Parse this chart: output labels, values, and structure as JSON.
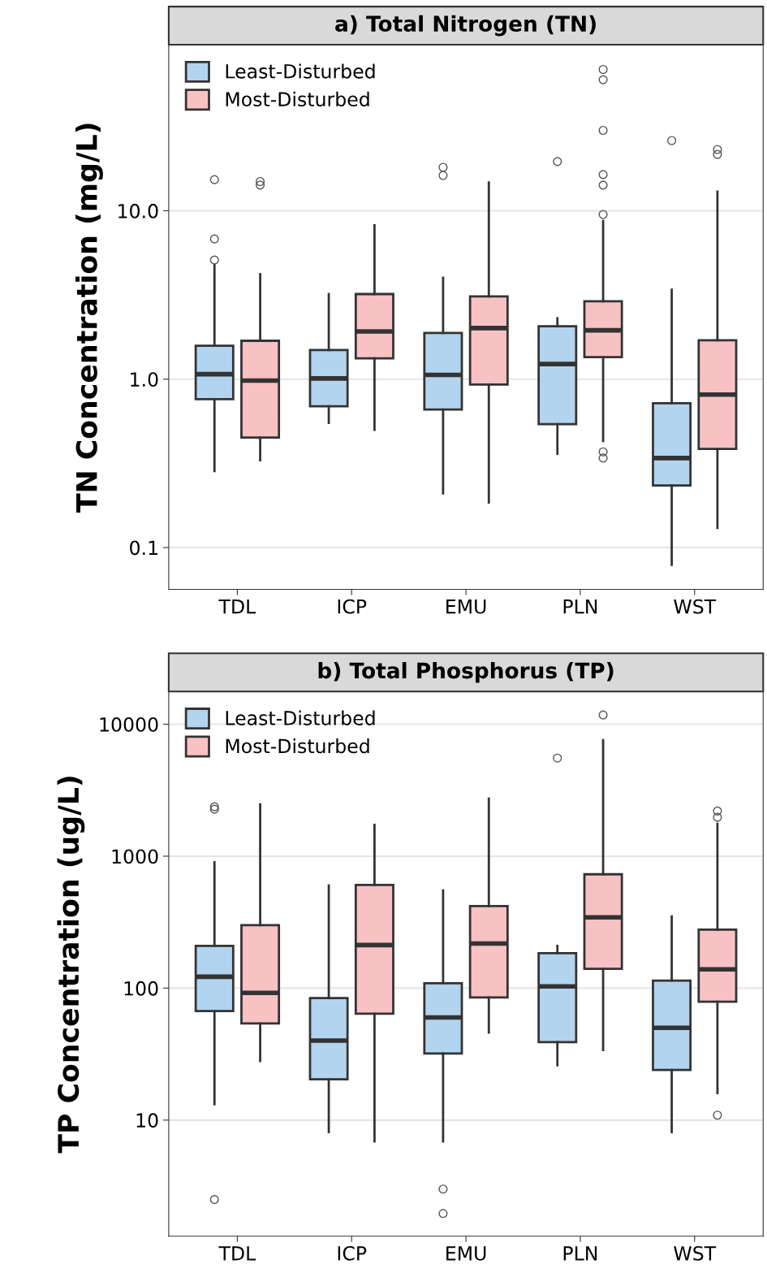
{
  "chart_data": [
    {
      "type": "box",
      "title": "a) Total Nitrogen (TN)",
      "ylabel": "TN Concentration (mg/L)",
      "categories": [
        "TDL",
        "ICP",
        "EMU",
        "PLN",
        "WST"
      ],
      "log": true,
      "ylim": [
        0.0565,
        96.8
      ],
      "yticks": [
        {
          "value": 0.1,
          "label": "0.1"
        },
        {
          "value": 1,
          "label": "1.0"
        },
        {
          "value": 10,
          "label": "10.0"
        }
      ],
      "grid": "y",
      "legend": "top left",
      "series": [
        {
          "name": "Least-Disturbed",
          "color": "#b3d4ee",
          "boxes": [
            {
              "low": 0.285,
              "q1": 0.76,
              "median": 1.07,
              "q3": 1.58,
              "high": 4.8,
              "outliers": [
                15.3,
                6.8,
                5.1
              ]
            },
            {
              "low": 0.55,
              "q1": 0.69,
              "median": 1.01,
              "q3": 1.49,
              "high": 3.2
            },
            {
              "low": 0.21,
              "q1": 0.66,
              "median": 1.06,
              "q3": 1.88,
              "high": 4.0,
              "outliers": [
                18.1,
                16.2
              ]
            },
            {
              "low": 0.36,
              "q1": 0.54,
              "median": 1.23,
              "q3": 2.06,
              "high": 2.3,
              "outliers": [
                19.6
              ]
            },
            {
              "low": 0.079,
              "q1": 0.234,
              "median": 0.34,
              "q3": 0.72,
              "high": 3.4,
              "outliers": [
                26.1
              ]
            }
          ]
        },
        {
          "name": "Most-Disturbed",
          "color": "#f8c1c3",
          "boxes": [
            {
              "low": 0.33,
              "q1": 0.45,
              "median": 0.98,
              "q3": 1.69,
              "high": 4.2,
              "outliers": [
                14.9,
                14.2
              ]
            },
            {
              "low": 0.5,
              "q1": 1.33,
              "median": 1.92,
              "q3": 3.2,
              "high": 8.2
            },
            {
              "low": 0.185,
              "q1": 0.93,
              "median": 2.01,
              "q3": 3.1,
              "high": 14.7
            },
            {
              "low": 0.43,
              "q1": 1.35,
              "median": 1.95,
              "q3": 2.9,
              "high": 8.7,
              "outliers": [
                69,
                60,
                30,
                16.4,
                14.2,
                9.5,
                0.37,
                0.34
              ]
            },
            {
              "low": 0.131,
              "q1": 0.385,
              "median": 0.81,
              "q3": 1.7,
              "high": 13,
              "outliers": [
                23.1,
                21.6
              ]
            }
          ]
        }
      ]
    },
    {
      "type": "box",
      "title": "b) Total Phosphorus (TP)",
      "ylabel": "TP Concentration (ug/L)",
      "categories": [
        "TDL",
        "ICP",
        "EMU",
        "PLN",
        "WST"
      ],
      "log": true,
      "ylim": [
        1.32,
        17700
      ],
      "yticks": [
        10,
        100,
        1000,
        10000
      ],
      "grid": "y",
      "legend": "top left",
      "series": [
        {
          "name": "Least-Disturbed",
          "color": "#b3d4ee",
          "boxes": [
            {
              "low": 13.2,
              "q1": 67,
              "median": 122,
              "q3": 209,
              "high": 900,
              "outliers": [
                2370,
                2270,
                2.5
              ]
            },
            {
              "low": 8.1,
              "q1": 20.4,
              "median": 40,
              "q3": 84,
              "high": 600
            },
            {
              "low": 6.9,
              "q1": 32,
              "median": 60,
              "q3": 109,
              "high": 550,
              "outliers": [
                3.0,
                1.96
              ]
            },
            {
              "low": 26,
              "q1": 39,
              "median": 103,
              "q3": 184,
              "high": 209,
              "outliers": [
                5540
              ]
            },
            {
              "low": 8.1,
              "q1": 24,
              "median": 50,
              "q3": 114,
              "high": 350
            }
          ]
        },
        {
          "name": "Most-Disturbed",
          "color": "#f8c1c3",
          "boxes": [
            {
              "low": 28,
              "q1": 54,
              "median": 92,
              "q3": 300,
              "high": 2470
            },
            {
              "low": 6.9,
              "q1": 64,
              "median": 212,
              "q3": 606,
              "high": 1730
            },
            {
              "low": 46,
              "q1": 85,
              "median": 218,
              "q3": 419,
              "high": 2730
            },
            {
              "low": 34,
              "q1": 140,
              "median": 344,
              "q3": 729,
              "high": 7570,
              "outliers": [
                11750
              ]
            },
            {
              "low": 16,
              "q1": 79,
              "median": 139,
              "q3": 278,
              "high": 1760,
              "outliers": [
                2200,
                1970,
                10.9
              ]
            }
          ]
        }
      ]
    }
  ]
}
